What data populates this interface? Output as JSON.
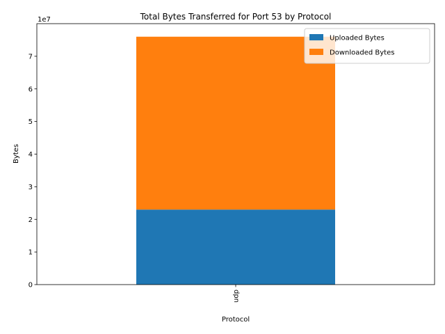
{
  "chart_data": {
    "type": "bar",
    "stacked": true,
    "title": "Total Bytes Transferred for Port 53 by Protocol",
    "xlabel": "Protocol",
    "ylabel": "Bytes",
    "y_offset_label": "1e7",
    "categories": [
      "udp"
    ],
    "series": [
      {
        "name": "Uploaded Bytes",
        "values": [
          23000000
        ],
        "color": "#1f77b4"
      },
      {
        "name": "Downloaded Bytes",
        "values": [
          53000000
        ],
        "color": "#ff7f0e"
      }
    ],
    "ylim": [
      0,
      80000000
    ],
    "yticks": [
      0,
      10000000,
      20000000,
      30000000,
      40000000,
      50000000,
      60000000,
      70000000
    ],
    "ytick_labels": [
      "0",
      "1",
      "2",
      "3",
      "4",
      "5",
      "6",
      "7"
    ],
    "legend_position": "top-right",
    "grid": false
  }
}
